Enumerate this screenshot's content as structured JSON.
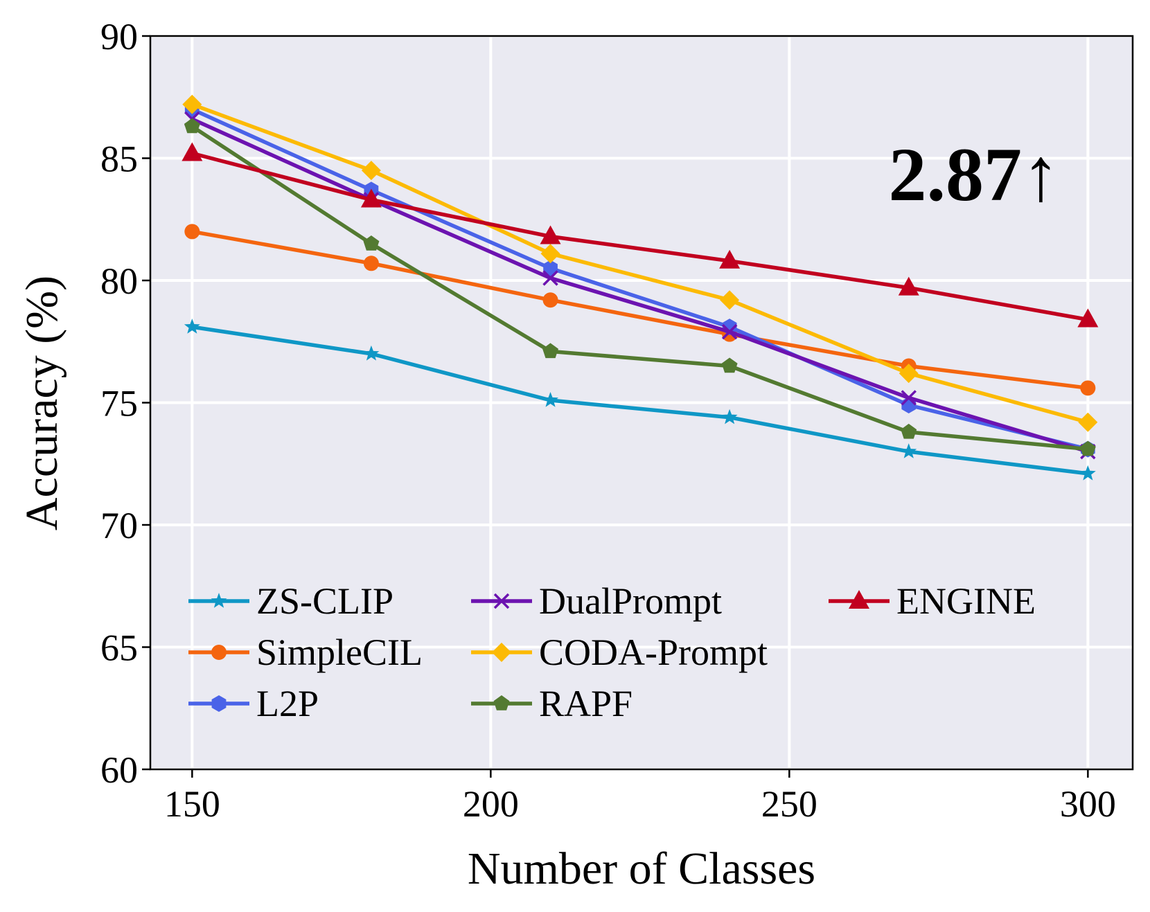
{
  "chart_data": {
    "type": "line",
    "title": "",
    "xlabel": "Number of Classes",
    "ylabel": "Accuracy (%)",
    "x": [
      150,
      180,
      210,
      240,
      270,
      300
    ],
    "xticks": [
      150,
      200,
      250,
      300
    ],
    "yticks": [
      60,
      65,
      70,
      75,
      80,
      85,
      90
    ],
    "xlim": [
      143,
      307.5
    ],
    "ylim": [
      60,
      90
    ],
    "grid": true,
    "legend_placement": "lower-left",
    "annotation": "2.87↑",
    "series": [
      {
        "name": "ZS-CLIP",
        "color": "#0f97c6",
        "marker": "star",
        "values": [
          78.1,
          77.0,
          75.1,
          74.4,
          73.0,
          72.1
        ]
      },
      {
        "name": "SimpleCIL",
        "color": "#f4650f",
        "marker": "circle",
        "values": [
          82.0,
          80.7,
          79.2,
          77.8,
          76.5,
          75.6
        ]
      },
      {
        "name": "L2P",
        "color": "#4a63e8",
        "marker": "hexagon",
        "values": [
          87.0,
          83.7,
          80.5,
          78.1,
          74.9,
          73.1
        ]
      },
      {
        "name": "DualPrompt",
        "color": "#6c13b0",
        "marker": "x",
        "values": [
          86.6,
          83.3,
          80.1,
          77.9,
          75.2,
          73.0
        ]
      },
      {
        "name": "CODA-Prompt",
        "color": "#fcba04",
        "marker": "diamond",
        "values": [
          87.2,
          84.5,
          81.1,
          79.2,
          76.2,
          74.2
        ]
      },
      {
        "name": "RAPF",
        "color": "#537a31",
        "marker": "pentagon",
        "values": [
          86.3,
          81.5,
          77.1,
          76.5,
          73.8,
          73.1
        ]
      },
      {
        "name": "ENGINE",
        "color": "#c1001f",
        "marker": "triangle",
        "values": [
          85.2,
          83.3,
          81.8,
          80.8,
          79.7,
          78.4
        ]
      }
    ]
  }
}
